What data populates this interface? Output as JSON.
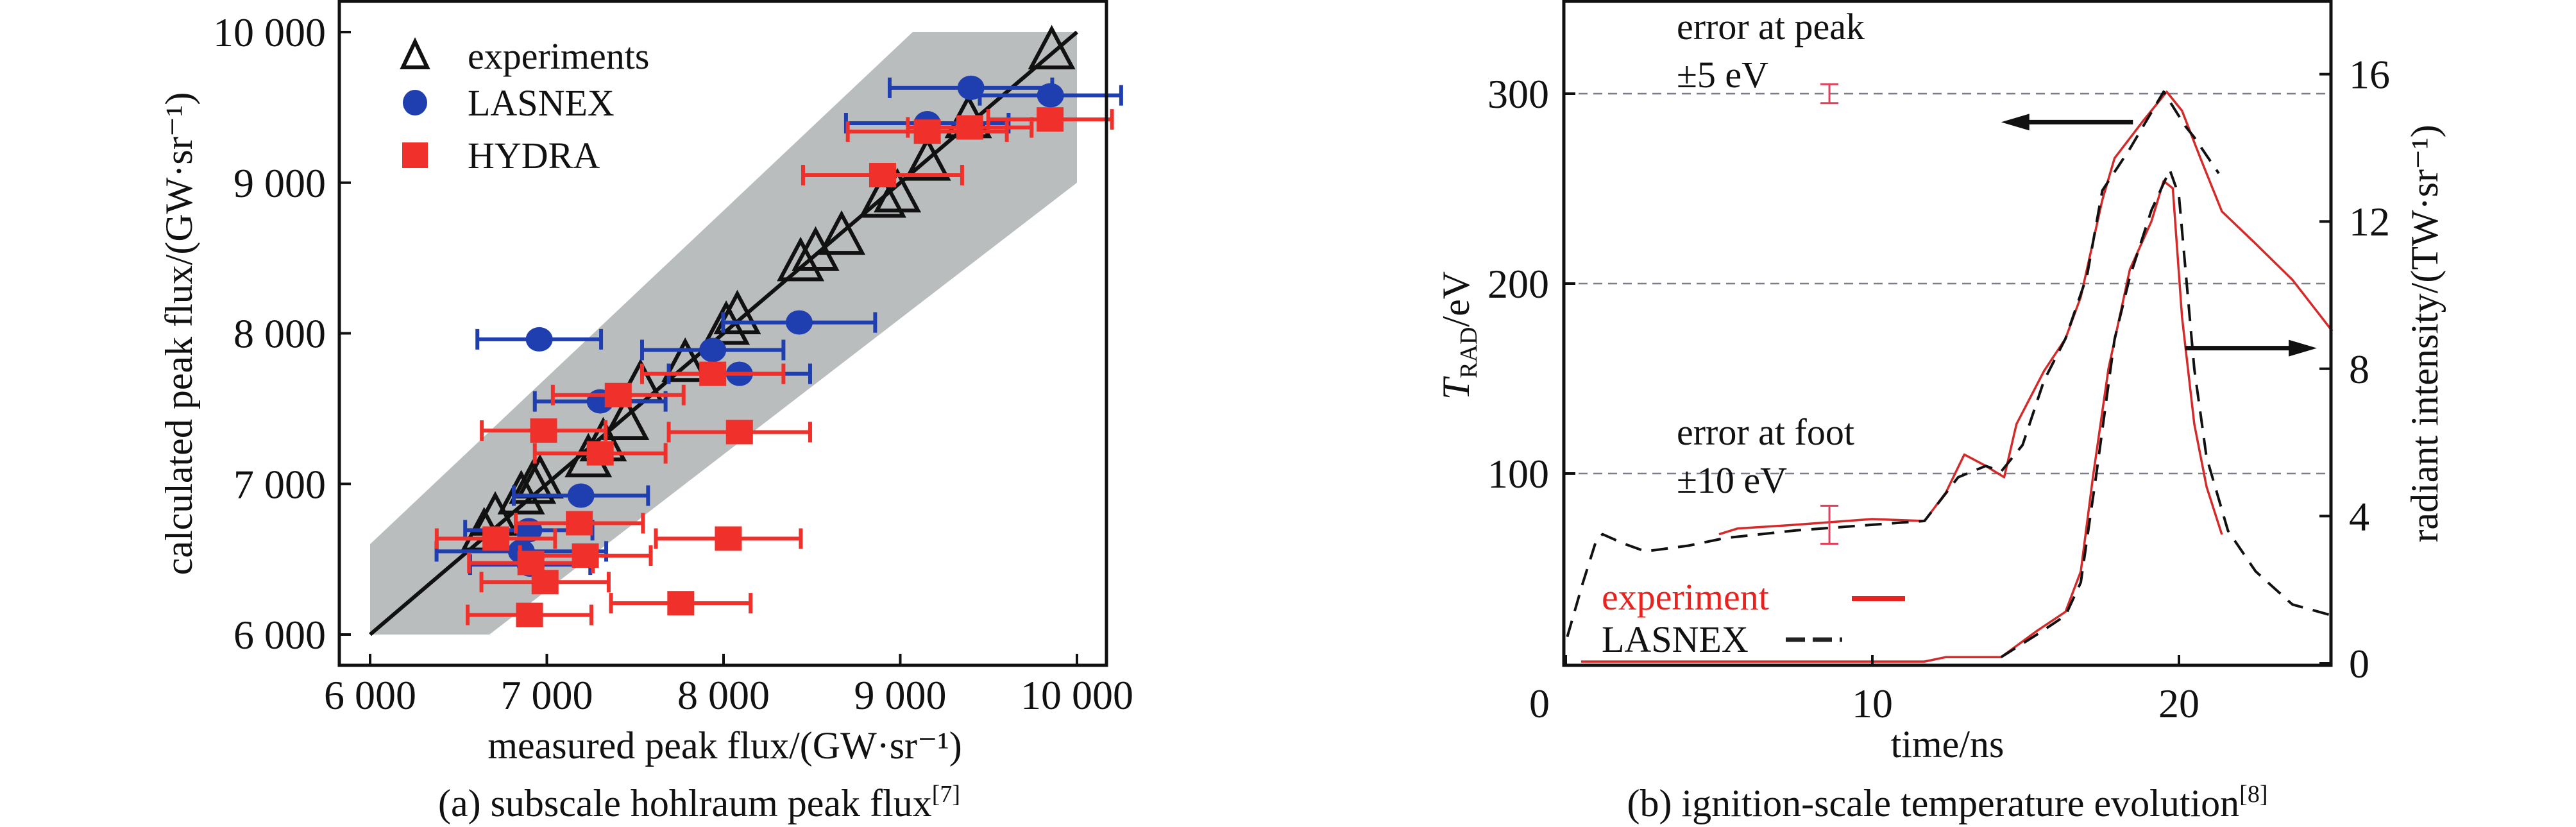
{
  "chart_data": [
    {
      "type": "scatter",
      "panel": "a",
      "caption": "(a) subscale hohlraum peak flux",
      "caption_ref": "[7]",
      "xlabel": "measured peak flux/(GW·sr⁻¹)",
      "ylabel": "calculated peak flux/(GW·sr⁻¹)",
      "xlim": [
        6000,
        10000
      ],
      "ylim": [
        6000,
        10000
      ],
      "xticks": [
        6000,
        7000,
        8000,
        9000,
        10000
      ],
      "xtick_labels": [
        "6 000",
        "7 000",
        "8 000",
        "9 000",
        "10 000"
      ],
      "yticks": [
        6000,
        7000,
        8000,
        9000,
        10000
      ],
      "ytick_labels": [
        "6 000",
        "7 000",
        "8 000",
        "9 000",
        "10 000"
      ],
      "legend_position": "top-left",
      "reference_line": {
        "x": [
          6000,
          10000
        ],
        "y": [
          6000,
          10000
        ]
      },
      "tolerance_band": {
        "x": [
          6000,
          6000,
          6675,
          10000,
          10000,
          9070
        ],
        "y": [
          6600,
          6000,
          6000,
          9000,
          10000,
          10000
        ],
        "color": "#b9bdbd"
      },
      "series": [
        {
          "name": "experiments",
          "marker": "triangle-open",
          "color": "#111111",
          "x": [
            9857,
            9385,
            9153,
            8984,
            8900,
            8668,
            8521,
            8436,
            8078,
            8015,
            7783,
            7530,
            7446,
            7319,
            7235,
            6961,
            6919,
            6855,
            6708,
            6645
          ],
          "y": [
            9859,
            9402,
            9120,
            8909,
            8874,
            8628,
            8522,
            8452,
            8100,
            8030,
            7784,
            7643,
            7397,
            7256,
            7150,
            7010,
            6974,
            6904,
            6763,
            6658
          ]
        },
        {
          "name": "LASNEX",
          "marker": "circle",
          "color": "#1f3fb0",
          "x": [
            6957,
            9400,
            9850,
            9153,
            8428,
            7939,
            8090,
            7302,
            7193,
            6898,
            6856,
            6906
          ],
          "y": [
            7960,
            9630,
            9580,
            9395,
            8072,
            7889,
            7731,
            7548,
            6922,
            6693,
            6552,
            6464
          ],
          "xerr": [
            350,
            460,
            400,
            460,
            430,
            400,
            400,
            370,
            380,
            360,
            480,
            340
          ]
        },
        {
          "name": "HYDRA",
          "marker": "square",
          "color": "#f0302a",
          "x": [
            9848,
            9393,
            9153,
            8900,
            7939,
            7404,
            6982,
            8090,
            7302,
            7184,
            6712,
            8027,
            7218,
            6910,
            6990,
            7758,
            6902
          ],
          "y": [
            9420,
            9367,
            9339,
            9050,
            7731,
            7590,
            7354,
            7344,
            7203,
            6739,
            6637,
            6637,
            6524,
            6475,
            6348,
            6208,
            6130
          ],
          "xerr": [
            350,
            350,
            450,
            450,
            400,
            370,
            350,
            400,
            370,
            360,
            335,
            410,
            370,
            350,
            360,
            395,
            350
          ]
        }
      ]
    },
    {
      "type": "line",
      "panel": "b",
      "caption": "(b) ignition-scale temperature evolution",
      "caption_ref": "[8]",
      "xlabel": "time/ns",
      "ylabel_left": {
        "symbol": "T",
        "subscript": "RAD",
        "unit": "/eV"
      },
      "ylabel_right": "radiant intensity/(TW·sr⁻¹)",
      "xlim": [
        0,
        25
      ],
      "ylim_left": [
        0,
        350
      ],
      "ylim_right": [
        0,
        18
      ],
      "xticks": [
        0,
        10,
        20
      ],
      "xtick_labels": [
        "0",
        "10",
        "20"
      ],
      "yticks_left": [
        100,
        200,
        300
      ],
      "ytick_labels_left": [
        "100",
        "200",
        "300"
      ],
      "yticks_right": [
        0,
        4,
        8,
        12,
        16
      ],
      "ytick_labels_right": [
        "0",
        "4",
        "8",
        "12",
        "16"
      ],
      "grid": "dashed horizontal at left-axis ticks",
      "legend_position": "bottom-left",
      "legend": [
        {
          "label": "experiment",
          "color": "#e8231f",
          "style": "solid"
        },
        {
          "label": "LASNEX",
          "color": "#222222",
          "style": "dashed"
        }
      ],
      "annotations": [
        {
          "text": "error at peak",
          "text2": "±5 eV",
          "errorbar": {
            "t": 8.6,
            "value": 300,
            "err": 5
          }
        },
        {
          "text": "error at foot",
          "text2": "±10 eV",
          "errorbar": {
            "t": 8.6,
            "value": 73,
            "err": 10
          }
        }
      ],
      "arrows": [
        {
          "axis": "left",
          "from_t": 18.5,
          "to_t": 14.2,
          "value": 285
        },
        {
          "axis": "right",
          "from_t": 20.2,
          "to_t": 24.5,
          "value": 8.56
        }
      ],
      "series": [
        {
          "name": "experiment T_RAD",
          "axis": "left",
          "color": "#d42a2a",
          "style": "solid",
          "t": [
            5.0,
            5.6,
            7.5,
            10,
            11.7,
            12.4,
            13.0,
            13.7,
            14.3,
            14.7,
            15.6,
            16.3,
            16.8,
            17.5,
            17.9,
            18.8,
            19.6,
            20.1,
            20.7,
            21.4,
            22.5,
            23.7,
            25
          ],
          "v": [
            68,
            71,
            73,
            76,
            75,
            90,
            110,
            104,
            98,
            126,
            154,
            171,
            193,
            244,
            266,
            285,
            301,
            291,
            266,
            238,
            221,
            202,
            175
          ]
        },
        {
          "name": "LASNEX T_RAD",
          "axis": "left",
          "color": "#111111",
          "style": "dashed",
          "t": [
            0.05,
            0.55,
            1.0,
            1.2,
            1.9,
            2.6,
            4.0,
            5.2,
            7.5,
            10,
            11.7,
            12.8,
            13.7,
            14.2,
            14.9,
            15.6,
            16.3,
            17.0,
            17.5,
            18.4,
            19.5,
            20.2,
            20.5,
            21.3
          ],
          "v": [
            14,
            42,
            65,
            68,
            63,
            59,
            62,
            66,
            70,
            73,
            75,
            98,
            104,
            101,
            115,
            149,
            171,
            204,
            249,
            271,
            301,
            283,
            277,
            258
          ]
        },
        {
          "name": "experiment intensity",
          "axis": "right",
          "color": "#d42a2a",
          "style": "solid",
          "t": [
            0.5,
            11.7,
            12.4,
            14.2,
            15.4,
            16.3,
            16.8,
            17.2,
            17.7,
            18.4,
            19.1,
            19.5,
            19.8,
            20.1,
            20.5,
            20.9,
            21.4
          ],
          "v": [
            0.05,
            0.05,
            0.17,
            0.17,
            0.9,
            1.4,
            2.5,
            5.1,
            8.0,
            10.7,
            12.0,
            13.1,
            12.9,
            9.4,
            6.5,
            4.8,
            3.5
          ]
        },
        {
          "name": "LASNEX intensity",
          "axis": "right",
          "color": "#111111",
          "style": "dashed",
          "t": [
            14.2,
            15.4,
            16.3,
            16.8,
            17.3,
            17.9,
            18.4,
            19.1,
            19.7,
            20.0,
            20.5,
            20.9,
            21.6,
            22.5,
            23.7,
            25
          ],
          "v": [
            0.17,
            0.8,
            1.3,
            2.2,
            5.1,
            8.8,
            10.5,
            12.3,
            13.4,
            12.7,
            8.0,
            5.6,
            3.6,
            2.5,
            1.6,
            1.3
          ]
        }
      ]
    }
  ]
}
